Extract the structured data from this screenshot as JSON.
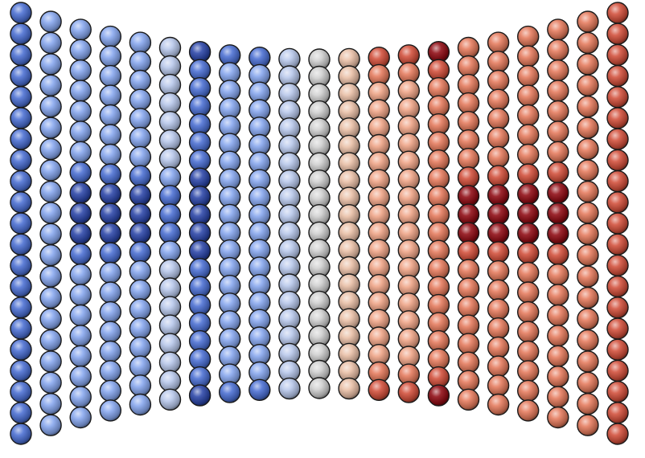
{
  "scene": {
    "background": "#ffffff",
    "description_icon": "sphere-grid",
    "columns": 21,
    "rows_per_column": 20,
    "rows_outer_columns": 21,
    "palette": {
      "deep_blue": "#2a45a8",
      "blue": "#4a6fd3",
      "light_blue": "#86a6ee",
      "pale_blue": "#b7c7ea",
      "grey": "#cfcfcf",
      "pale_peach": "#e9bfa6",
      "peach": "#efa486",
      "salmon": "#e57a5c",
      "red": "#d24f3a",
      "dark_red": "#8f0a12"
    },
    "column_colors": [
      "blue",
      "light_blue",
      "light_blue",
      "light_blue",
      "light_blue",
      "pale_blue",
      "blue",
      "light_blue",
      "light_blue",
      "pale_blue",
      "grey",
      "pale_peach",
      "peach",
      "peach",
      "salmon",
      "salmon",
      "salmon",
      "salmon",
      "salmon",
      "salmon",
      "red"
    ]
  }
}
